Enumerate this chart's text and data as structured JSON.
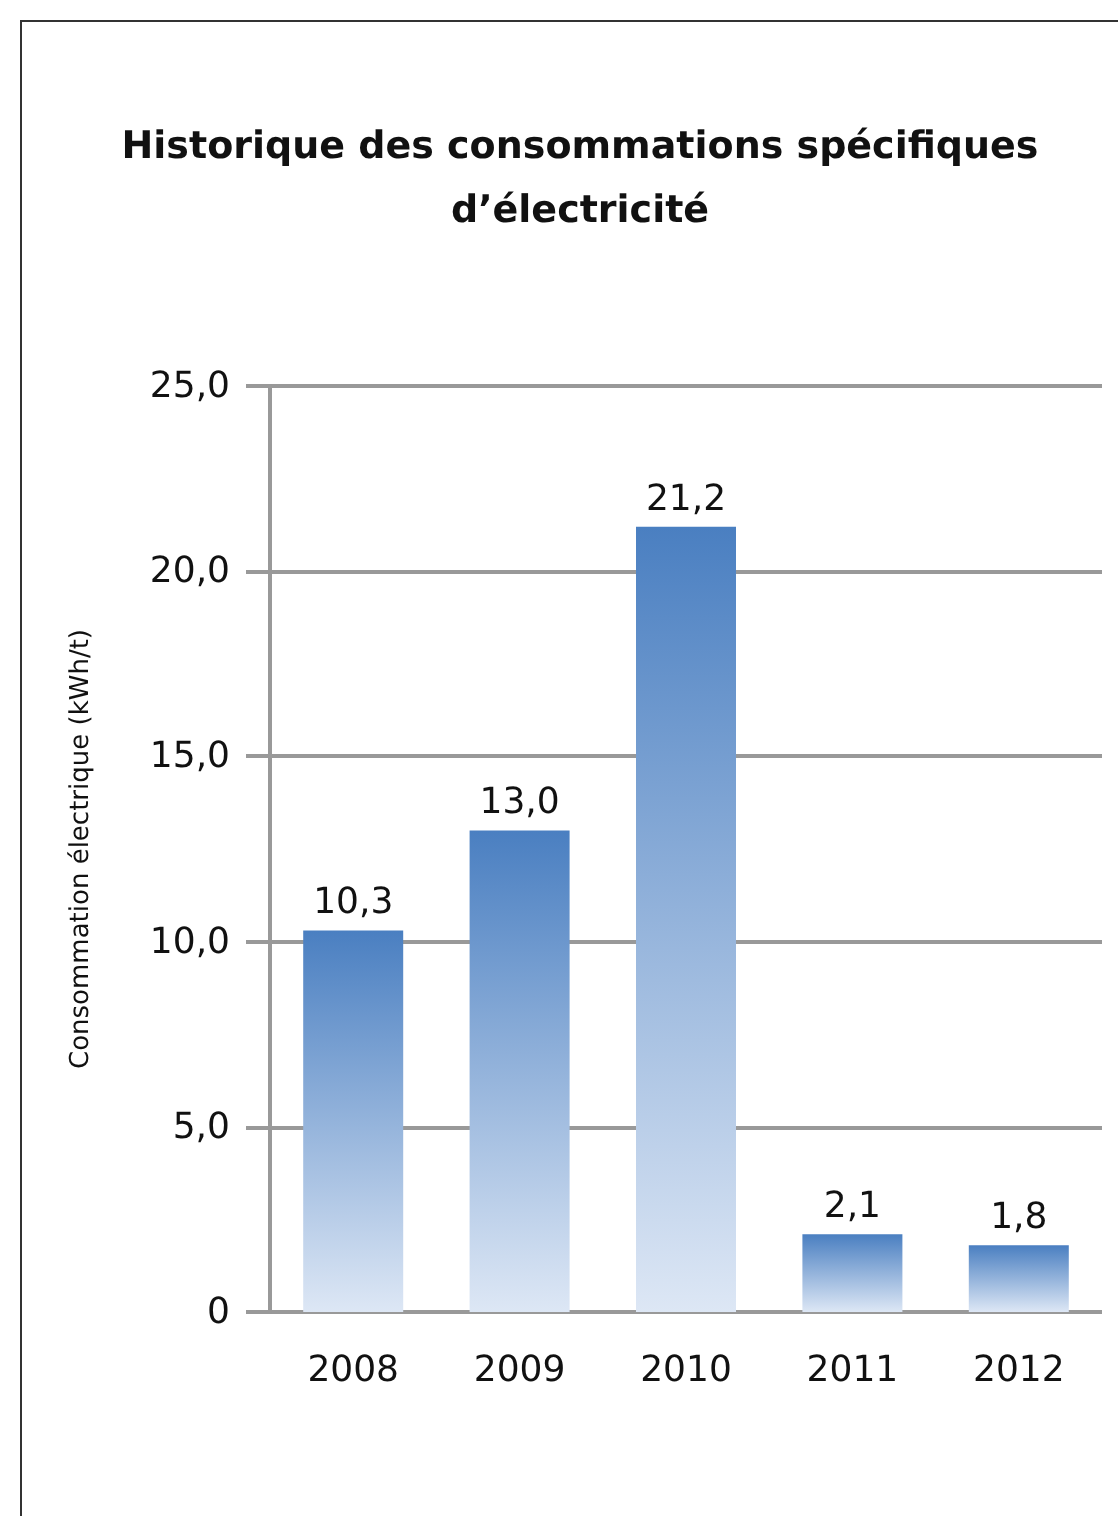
{
  "chart_data": {
    "type": "bar",
    "title": "Historique des consommations spécifiques\nd’électricité",
    "ylabel": "Consommation électrique (kWh/t)",
    "categories": [
      "2008",
      "2009",
      "2010",
      "2011",
      "2012"
    ],
    "values": [
      10.3,
      13.0,
      21.2,
      2.1,
      1.8
    ],
    "value_labels": [
      "10,3",
      "13,0",
      "21,2",
      "2,1",
      "1,8"
    ],
    "color": "#4a7fc1",
    "ylim": [
      0,
      25
    ],
    "yticks": [
      0,
      {
        "value": 5,
        "label": "5,0"
      },
      {
        "value": 10,
        "label": "10,0"
      },
      {
        "value": 15,
        "label": "15,0"
      },
      {
        "value": 20,
        "label": "20,0"
      },
      {
        "value": 25,
        "label": "25,0"
      }
    ],
    "grid": "y"
  }
}
